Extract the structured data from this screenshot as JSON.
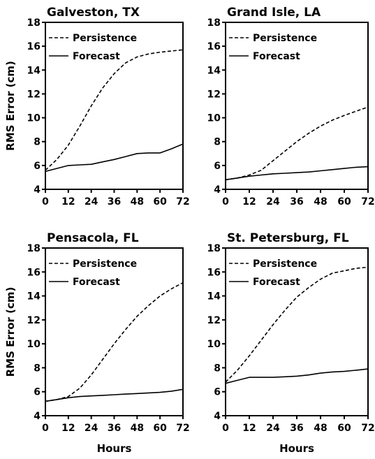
{
  "chart_data": {
    "type": "line",
    "x_label": "Hours",
    "y_label": "RMS Error (cm)",
    "x_ticks": [
      0,
      12,
      24,
      36,
      48,
      60,
      72
    ],
    "y_ticks": [
      4,
      6,
      8,
      10,
      12,
      14,
      16,
      18
    ],
    "xlim": [
      0,
      72
    ],
    "ylim": [
      4,
      18
    ],
    "legend": [
      "Persistence",
      "Forecast"
    ],
    "panels": [
      {
        "title": "Galveston, TX",
        "x": [
          0,
          6,
          12,
          18,
          24,
          30,
          36,
          42,
          48,
          54,
          60,
          66,
          72
        ],
        "series": [
          {
            "name": "Persistence",
            "style": "dashed",
            "values": [
              5.6,
              6.5,
              7.7,
              9.3,
              11.0,
              12.5,
              13.7,
              14.6,
              15.1,
              15.35,
              15.5,
              15.6,
              15.7
            ]
          },
          {
            "name": "Forecast",
            "style": "solid",
            "values": [
              5.5,
              5.75,
              6.0,
              6.05,
              6.1,
              6.3,
              6.5,
              6.75,
              7.0,
              7.05,
              7.05,
              7.4,
              7.8
            ]
          }
        ]
      },
      {
        "title": "Grand Isle, LA",
        "x": [
          0,
          6,
          12,
          18,
          24,
          30,
          36,
          42,
          48,
          54,
          60,
          66,
          72
        ],
        "series": [
          {
            "name": "Persistence",
            "style": "dashed",
            "values": [
              4.8,
              4.95,
              5.2,
              5.6,
              6.4,
              7.2,
              8.0,
              8.7,
              9.3,
              9.8,
              10.2,
              10.55,
              10.9
            ]
          },
          {
            "name": "Forecast",
            "style": "solid",
            "values": [
              4.8,
              4.95,
              5.1,
              5.2,
              5.3,
              5.35,
              5.4,
              5.45,
              5.55,
              5.65,
              5.75,
              5.85,
              5.9
            ]
          }
        ]
      },
      {
        "title": "Pensacola, FL",
        "x": [
          0,
          6,
          12,
          18,
          24,
          30,
          36,
          42,
          48,
          54,
          60,
          66,
          72
        ],
        "series": [
          {
            "name": "Persistence",
            "style": "dashed",
            "values": [
              5.2,
              5.35,
              5.6,
              6.3,
              7.4,
              8.7,
              10.0,
              11.2,
              12.3,
              13.2,
              14.0,
              14.6,
              15.1
            ]
          },
          {
            "name": "Forecast",
            "style": "solid",
            "values": [
              5.2,
              5.35,
              5.5,
              5.6,
              5.65,
              5.7,
              5.75,
              5.8,
              5.85,
              5.9,
              5.95,
              6.05,
              6.2
            ]
          }
        ]
      },
      {
        "title": "St. Petersburg, FL",
        "x": [
          0,
          6,
          12,
          18,
          24,
          30,
          36,
          42,
          48,
          54,
          60,
          66,
          72
        ],
        "series": [
          {
            "name": "Persistence",
            "style": "dashed",
            "values": [
              6.8,
              7.8,
              9.0,
              10.3,
              11.6,
              12.8,
              13.9,
              14.7,
              15.4,
              15.9,
              16.1,
              16.3,
              16.4
            ]
          },
          {
            "name": "Forecast",
            "style": "solid",
            "values": [
              6.7,
              6.95,
              7.2,
              7.2,
              7.2,
              7.25,
              7.3,
              7.4,
              7.55,
              7.65,
              7.7,
              7.8,
              7.9
            ]
          }
        ]
      }
    ]
  }
}
